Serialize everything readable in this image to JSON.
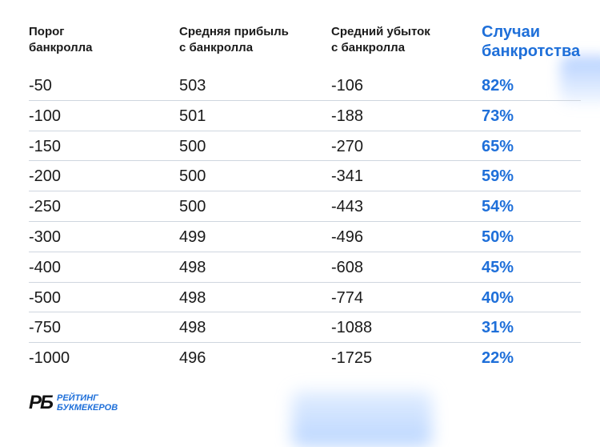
{
  "header": {
    "col1": "Порог\nбанкролла",
    "col2": "Средняя прибыль\nс банкролла",
    "col3": "Средний убыток\nс банкролла",
    "col4": "Случаи\nбанкротства"
  },
  "rows": [
    {
      "threshold": "-50",
      "profit": "503",
      "loss": "-106",
      "bankruptcy": "82%"
    },
    {
      "threshold": "-100",
      "profit": "501",
      "loss": "-188",
      "bankruptcy": "73%"
    },
    {
      "threshold": "-150",
      "profit": "500",
      "loss": "-270",
      "bankruptcy": "65%"
    },
    {
      "threshold": "-200",
      "profit": "500",
      "loss": "-341",
      "bankruptcy": "59%"
    },
    {
      "threshold": "-250",
      "profit": "500",
      "loss": "-443",
      "bankruptcy": "54%"
    },
    {
      "threshold": "-300",
      "profit": "499",
      "loss": "-496",
      "bankruptcy": "50%"
    },
    {
      "threshold": "-400",
      "profit": "498",
      "loss": "-608",
      "bankruptcy": "45%"
    },
    {
      "threshold": "-500",
      "profit": "498",
      "loss": "-774",
      "bankruptcy": "40%"
    },
    {
      "threshold": "-750",
      "profit": "498",
      "loss": "-1088",
      "bankruptcy": "31%"
    },
    {
      "threshold": "-1000",
      "profit": "496",
      "loss": "-1725",
      "bankruptcy": "22%"
    }
  ],
  "logo": {
    "mark": "РБ",
    "line1": "РЕЙТИНГ",
    "line2": "БУКМЕКЕРОВ"
  },
  "colors": {
    "accent": "#1e6fd9",
    "text": "#1a1a1a",
    "divider": "#cfd6df"
  }
}
